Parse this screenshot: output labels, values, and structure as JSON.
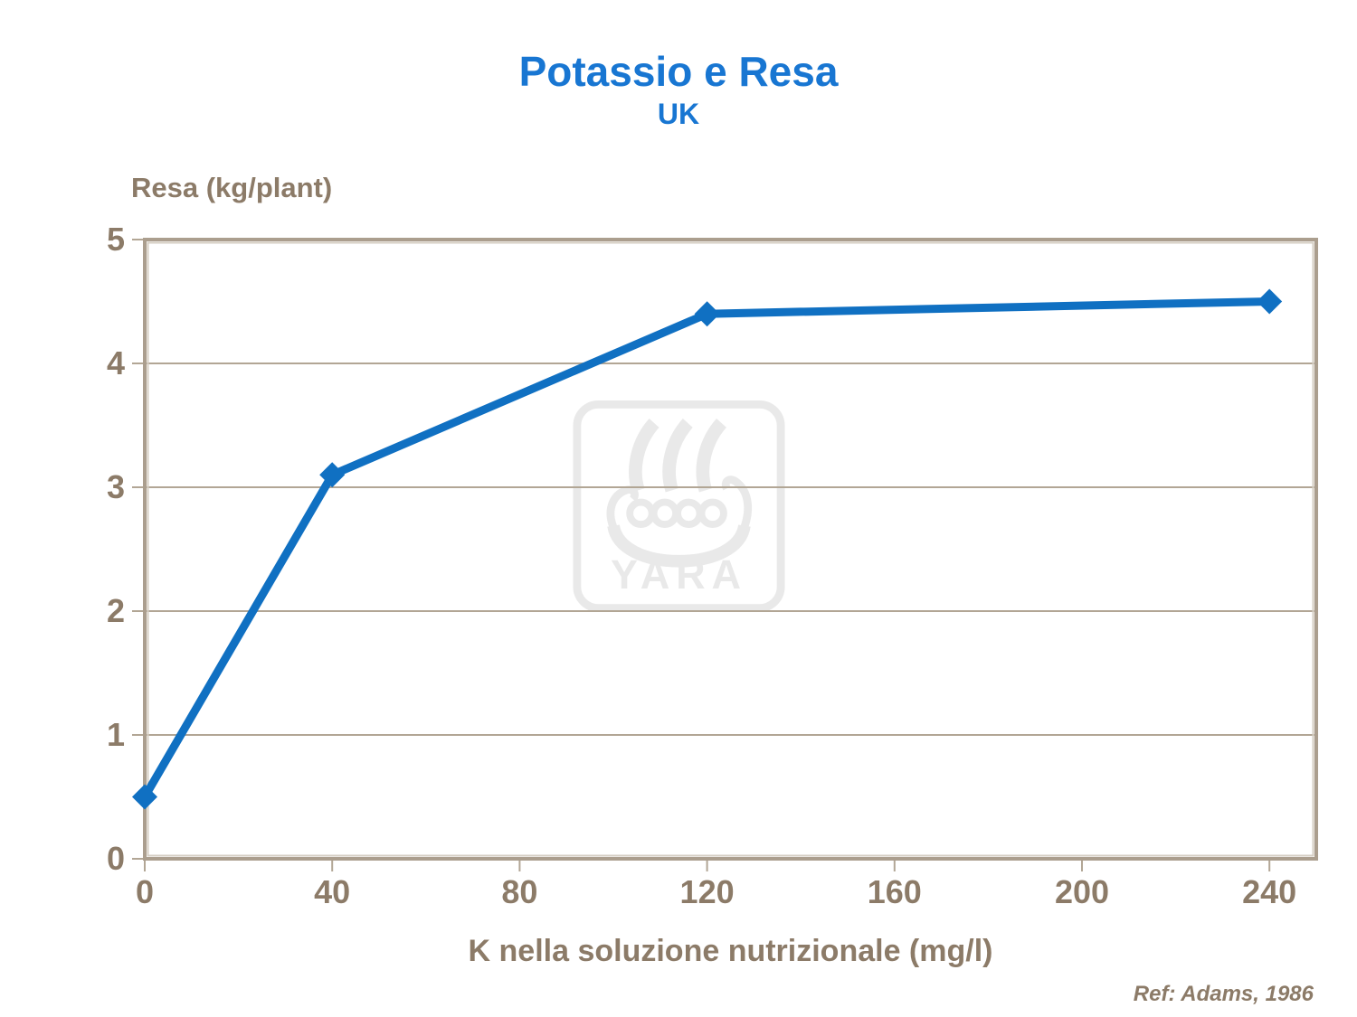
{
  "chart_data": {
    "type": "line",
    "title": "Potassio e Resa",
    "subtitle": "UK",
    "xlabel": "K nella soluzione nutrizionale (mg/l)",
    "ylabel": "Resa (kg/plant)",
    "x_ticks": [
      0,
      40,
      80,
      120,
      160,
      200,
      240
    ],
    "y_ticks": [
      0,
      1,
      2,
      3,
      4,
      5
    ],
    "xlim": [
      0,
      250
    ],
    "ylim": [
      0,
      5
    ],
    "grid": "horizontal-only",
    "legend": "none",
    "series": [
      {
        "name": "Resa (kg/plant)",
        "x": [
          0,
          40,
          120,
          240
        ],
        "y": [
          0.5,
          3.1,
          4.4,
          4.5
        ],
        "color": "#1070c2",
        "marker": "diamond"
      }
    ],
    "colors": {
      "grid": "#b2a695",
      "axis": "#ab9e8e",
      "axis_highlight": "#d5cec3",
      "tick_text": "#8c7b68"
    }
  },
  "watermark": {
    "text": "YARA",
    "color": "#e9e9e9"
  },
  "footer": {
    "reference": "Ref: Adams, 1986"
  },
  "colors": {
    "title_blue": "#1876d2",
    "line_blue": "#1070c2",
    "taupe_text": "#8c7b68",
    "background": "#ffffff"
  }
}
